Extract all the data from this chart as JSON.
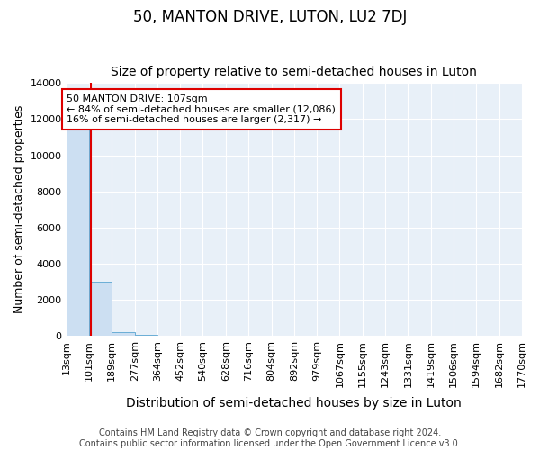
{
  "title": "50, MANTON DRIVE, LUTON, LU2 7DJ",
  "subtitle": "Size of property relative to semi-detached houses in Luton",
  "xlabel": "Distribution of semi-detached houses by size in Luton",
  "ylabel": "Number of semi-detached properties",
  "footer_line1": "Contains HM Land Registry data © Crown copyright and database right 2024.",
  "footer_line2": "Contains public sector information licensed under the Open Government Licence v3.0.",
  "annotation_line1": "50 MANTON DRIVE: 107sqm",
  "annotation_line2": "← 84% of semi-detached houses are smaller (12,086)",
  "annotation_line3": "16% of semi-detached houses are larger (2,317) →",
  "property_size": 107,
  "bin_edges": [
    13,
    101,
    189,
    277,
    364,
    452,
    540,
    628,
    716,
    804,
    892,
    979,
    1067,
    1155,
    1243,
    1331,
    1419,
    1506,
    1594,
    1682,
    1770
  ],
  "bin_labels": [
    "13sqm",
    "101sqm",
    "189sqm",
    "277sqm",
    "364sqm",
    "452sqm",
    "540sqm",
    "628sqm",
    "716sqm",
    "804sqm",
    "892sqm",
    "979sqm",
    "1067sqm",
    "1155sqm",
    "1243sqm",
    "1331sqm",
    "1419sqm",
    "1506sqm",
    "1594sqm",
    "1682sqm",
    "1770sqm"
  ],
  "bar_heights": [
    11400,
    3000,
    180,
    30,
    5,
    2,
    1,
    1,
    1,
    0,
    0,
    0,
    0,
    0,
    0,
    0,
    0,
    0,
    0,
    0
  ],
  "bar_color": "#ccdff2",
  "bar_edge_color": "#6aaed6",
  "red_line_color": "#dd0000",
  "background_color": "#e8f0f8",
  "ylim": [
    0,
    14000
  ],
  "yticks": [
    0,
    2000,
    4000,
    6000,
    8000,
    10000,
    12000,
    14000
  ],
  "title_fontsize": 12,
  "subtitle_fontsize": 10,
  "ylabel_fontsize": 9,
  "xlabel_fontsize": 10,
  "tick_fontsize": 8,
  "annotation_fontsize": 8,
  "footer_fontsize": 7
}
